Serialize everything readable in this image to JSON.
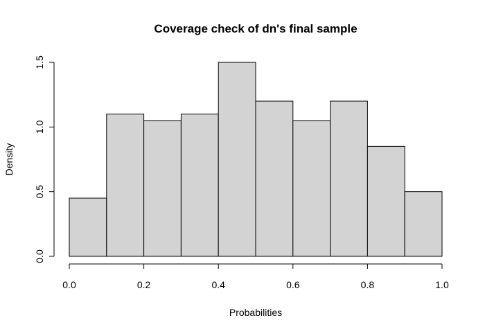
{
  "chart_data": {
    "type": "bar",
    "title": "Coverage check of dn's final sample",
    "xlabel": "Probabilities",
    "ylabel": "Density",
    "bins": [
      {
        "start": 0.0,
        "end": 0.1,
        "value": 0.45
      },
      {
        "start": 0.1,
        "end": 0.2,
        "value": 1.1
      },
      {
        "start": 0.2,
        "end": 0.3,
        "value": 1.05
      },
      {
        "start": 0.3,
        "end": 0.4,
        "value": 1.1
      },
      {
        "start": 0.4,
        "end": 0.5,
        "value": 1.5
      },
      {
        "start": 0.5,
        "end": 0.6,
        "value": 1.2
      },
      {
        "start": 0.6,
        "end": 0.7,
        "value": 1.05
      },
      {
        "start": 0.7,
        "end": 0.8,
        "value": 1.2
      },
      {
        "start": 0.8,
        "end": 0.9,
        "value": 0.85
      },
      {
        "start": 0.9,
        "end": 1.0,
        "value": 0.5
      }
    ],
    "xlim": [
      0.0,
      1.0
    ],
    "ylim": [
      0.0,
      1.5
    ],
    "x_ticks": [
      0.0,
      0.2,
      0.4,
      0.6,
      0.8,
      1.0
    ],
    "x_tick_labels": [
      "0.0",
      "0.2",
      "0.4",
      "0.6",
      "0.8",
      "1.0"
    ],
    "y_ticks": [
      0.0,
      0.5,
      1.0,
      1.5
    ],
    "y_tick_labels": [
      "0.0",
      "0.5",
      "1.0",
      "1.5"
    ],
    "grid": false,
    "legend": "none",
    "bar_fill": "#d3d3d3",
    "bar_stroke": "#000000"
  }
}
